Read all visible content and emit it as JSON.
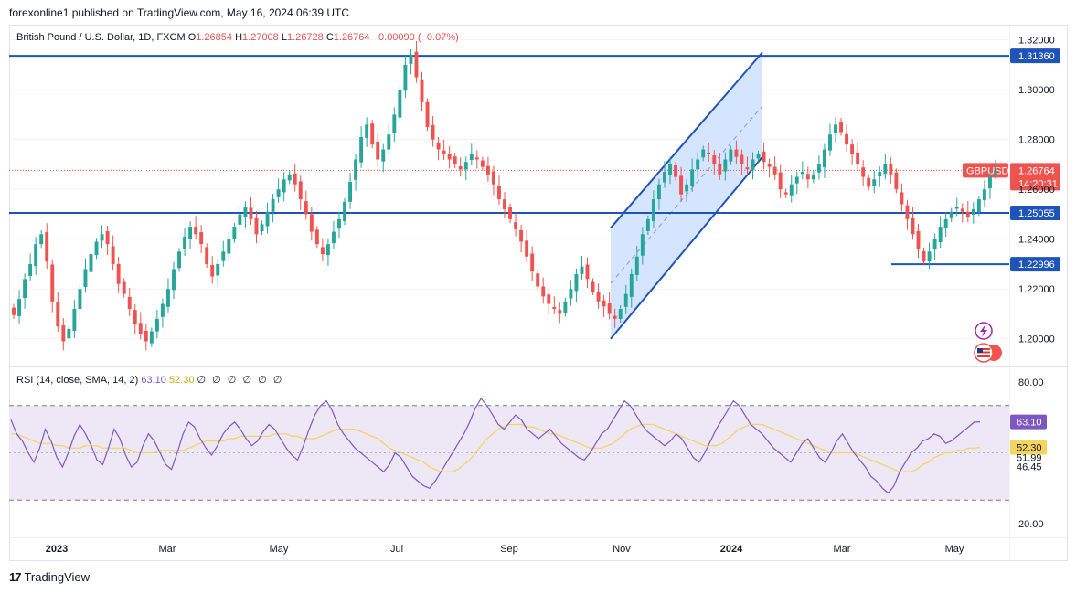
{
  "header": {
    "published_line": "forexonline1 published on TradingView.com, May 16, 2024 06:39 UTC",
    "brand": "TradingView"
  },
  "legend": {
    "symbol_text": "British Pound / U.S. Dollar, 1D, FXCM",
    "o_label": "O",
    "o_value": "1.26854",
    "h_label": "H",
    "h_value": "1.27008",
    "l_label": "L",
    "l_value": "1.26728",
    "c_label": "C",
    "c_value": "1.26764",
    "change": "−0.00090 (−0.07%)"
  },
  "rsi_legend": {
    "label": "RSI (14, close, SMA, 14, 2)",
    "rsi_value": "63.10",
    "sma_value": "52.30",
    "placeholders": "∅ ∅ ∅ ∅ ∅ ∅"
  },
  "colors": {
    "up": "#26a69a",
    "down": "#ef5350",
    "levels": "#1e53b8",
    "rsi_line": "#7e57c2",
    "rsi_sma": "#f4d35e",
    "rsi_band": "#ede7f6",
    "price_tag": "#ef5350"
  },
  "chart_data": [
    {
      "type": "candlestick",
      "symbol": "GBPUSD",
      "ylim": [
        1.19,
        1.325
      ],
      "price_ticks": [
        "1.32000",
        "1.30000",
        "1.28000",
        "1.26000",
        "1.24000",
        "1.22000",
        "1.20000"
      ],
      "x_ticks": [
        "2023",
        "Mar",
        "May",
        "Jul",
        "Sep",
        "Nov",
        "2024",
        "Mar",
        "May"
      ],
      "horizontal_levels": [
        {
          "value": 1.3136,
          "label": "1.31360"
        },
        {
          "value": 1.25055,
          "label": "1.25055"
        },
        {
          "value": 1.22996,
          "label": "1.22996"
        }
      ],
      "last_price": {
        "value": 1.26764,
        "symbol_tag": "GBPUSD",
        "price_label": "1.26764",
        "countdown": "14:20:31"
      },
      "channel": {
        "lower_start": [
          1.2,
          "2023-10-24"
        ],
        "upper_end": [
          1.315,
          "2024-01-08"
        ]
      },
      "closes": [
        1.2095,
        1.216,
        1.224,
        1.23,
        1.238,
        1.242,
        1.231,
        1.215,
        1.205,
        1.199,
        1.204,
        1.212,
        1.22,
        1.228,
        1.234,
        1.239,
        1.242,
        1.238,
        1.23,
        1.222,
        1.218,
        1.212,
        1.206,
        1.202,
        1.199,
        1.203,
        1.208,
        1.214,
        1.22,
        1.228,
        1.235,
        1.241,
        1.245,
        1.242,
        1.238,
        1.23,
        1.225,
        1.23,
        1.235,
        1.24,
        1.245,
        1.25,
        1.253,
        1.248,
        1.242,
        1.246,
        1.251,
        1.256,
        1.26,
        1.264,
        1.266,
        1.262,
        1.256,
        1.25,
        1.243,
        1.238,
        1.234,
        1.238,
        1.243,
        1.248,
        1.255,
        1.263,
        1.272,
        1.281,
        1.286,
        1.278,
        1.272,
        1.276,
        1.282,
        1.29,
        1.3,
        1.31,
        1.314,
        1.305,
        1.295,
        1.285,
        1.28,
        1.276,
        1.274,
        1.272,
        1.27,
        1.268,
        1.271,
        1.274,
        1.272,
        1.269,
        1.266,
        1.262,
        1.256,
        1.252,
        1.248,
        1.244,
        1.239,
        1.233,
        1.227,
        1.221,
        1.217,
        1.214,
        1.212,
        1.21,
        1.215,
        1.22,
        1.226,
        1.229,
        1.224,
        1.219,
        1.215,
        1.213,
        1.21,
        1.208,
        1.212,
        1.218,
        1.226,
        1.233,
        1.242,
        1.248,
        1.256,
        1.262,
        1.267,
        1.27,
        1.265,
        1.258,
        1.262,
        1.268,
        1.272,
        1.276,
        1.274,
        1.27,
        1.266,
        1.272,
        1.276,
        1.273,
        1.27,
        1.268,
        1.272,
        1.274,
        1.271,
        1.269,
        1.266,
        1.26,
        1.258,
        1.262,
        1.265,
        1.267,
        1.264,
        1.266,
        1.27,
        1.276,
        1.282,
        1.286,
        1.283,
        1.278,
        1.274,
        1.27,
        1.265,
        1.261,
        1.264,
        1.267,
        1.27,
        1.266,
        1.26,
        1.254,
        1.248,
        1.242,
        1.236,
        1.231,
        1.235,
        1.24,
        1.245,
        1.248,
        1.251,
        1.253,
        1.251,
        1.249,
        1.252,
        1.256,
        1.26,
        1.265,
        1.2676
      ]
    },
    {
      "type": "line",
      "name": "RSI (14, close, SMA, 14, 2)",
      "ylim": [
        15,
        85
      ],
      "ticks": [
        "80.00",
        "20.00"
      ],
      "band": [
        70,
        30
      ],
      "markers": [
        {
          "value": 63.1,
          "label": "63.10"
        },
        {
          "value": 52.3,
          "label": "52.30"
        },
        {
          "value": 51.99,
          "label": "51.99"
        },
        {
          "value": 46.45,
          "label": "46.45"
        }
      ],
      "rsi_values": [
        64,
        58,
        55,
        50,
        46,
        52,
        60,
        55,
        48,
        44,
        50,
        57,
        62,
        58,
        53,
        47,
        45,
        52,
        60,
        56,
        49,
        44,
        46,
        53,
        58,
        55,
        50,
        45,
        43,
        50,
        58,
        63,
        61,
        56,
        52,
        49,
        53,
        58,
        61,
        63,
        60,
        56,
        53,
        55,
        59,
        62,
        60,
        56,
        52,
        49,
        47,
        53,
        60,
        66,
        70,
        72,
        68,
        62,
        58,
        55,
        52,
        50,
        48,
        46,
        44,
        42,
        45,
        50,
        48,
        44,
        40,
        38,
        36,
        35,
        38,
        42,
        46,
        50,
        54,
        58,
        63,
        69,
        73,
        70,
        66,
        62,
        60,
        63,
        66,
        64,
        60,
        58,
        56,
        58,
        60,
        57,
        54,
        52,
        50,
        48,
        47,
        50,
        54,
        58,
        60,
        64,
        68,
        72,
        70,
        66,
        62,
        59,
        57,
        55,
        53,
        55,
        58,
        56,
        52,
        48,
        46,
        50,
        55,
        60,
        64,
        68,
        72,
        70,
        66,
        62,
        60,
        58,
        55,
        52,
        50,
        48,
        46,
        50,
        54,
        56,
        52,
        48,
        46,
        50,
        55,
        58,
        54,
        50,
        47,
        44,
        40,
        38,
        35,
        33,
        36,
        42,
        46,
        50,
        52,
        55,
        56,
        58,
        57,
        54,
        55,
        57,
        59,
        61,
        63,
        63.1
      ],
      "sma_values": [
        58,
        58,
        57,
        56,
        55,
        54,
        54,
        54,
        53,
        53,
        52,
        52,
        52,
        53,
        53,
        53,
        52,
        52,
        52,
        52,
        52,
        51,
        50,
        50,
        50,
        50,
        51,
        51,
        51,
        51,
        51,
        52,
        53,
        54,
        55,
        55,
        55,
        55,
        56,
        56,
        57,
        57,
        57,
        57,
        57,
        57,
        58,
        58,
        58,
        57,
        57,
        56,
        56,
        56,
        57,
        58,
        59,
        60,
        60,
        60,
        60,
        59,
        58,
        57,
        56,
        54,
        52,
        51,
        50,
        49,
        48,
        47,
        46,
        44,
        43,
        42,
        42,
        42,
        43,
        45,
        47,
        50,
        53,
        56,
        58,
        60,
        61,
        62,
        62,
        62,
        61,
        61,
        60,
        59,
        58,
        58,
        57,
        56,
        55,
        54,
        53,
        52,
        52,
        52,
        53,
        54,
        56,
        58,
        60,
        61,
        62,
        62,
        62,
        61,
        60,
        59,
        58,
        57,
        56,
        55,
        54,
        53,
        53,
        53,
        54,
        56,
        58,
        60,
        61,
        62,
        62,
        62,
        61,
        60,
        59,
        58,
        57,
        56,
        55,
        54,
        53,
        52,
        51,
        50,
        50,
        50,
        50,
        50,
        49,
        48,
        47,
        46,
        45,
        44,
        43,
        42,
        42,
        42,
        43,
        45,
        46,
        48,
        49,
        50,
        50,
        51,
        51,
        52,
        52,
        52.3
      ]
    }
  ]
}
